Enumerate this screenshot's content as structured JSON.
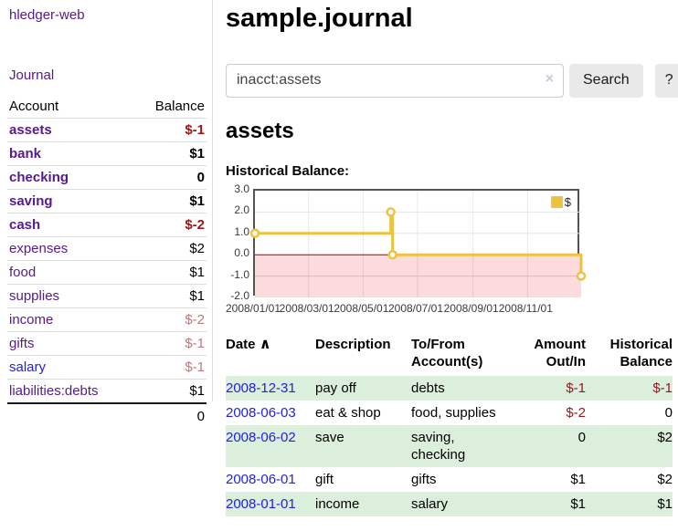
{
  "brand": "hledger-web",
  "sidebar": {
    "journal_link": "Journal",
    "account_header": "Account",
    "balance_header": "Balance",
    "accounts": [
      {
        "name": "assets",
        "balance": "$-1",
        "indent": 1,
        "bold": true,
        "balance_class": "neg-strong",
        "link_class": ""
      },
      {
        "name": "bank",
        "balance": "$1",
        "indent": 2,
        "bold": true,
        "balance_class": "",
        "link_class": ""
      },
      {
        "name": "checking",
        "balance": "0",
        "indent": 3,
        "bold": true,
        "balance_class": "",
        "link_class": ""
      },
      {
        "name": "saving",
        "balance": "$1",
        "indent": 3,
        "bold": true,
        "balance_class": "",
        "link_class": ""
      },
      {
        "name": "cash",
        "balance": "$-2",
        "indent": 2,
        "bold": true,
        "balance_class": "neg-strong",
        "link_class": ""
      },
      {
        "name": "expenses",
        "balance": "$2",
        "indent": 1,
        "bold": false,
        "balance_class": "",
        "link_class": ""
      },
      {
        "name": "food",
        "balance": "$1",
        "indent": 2,
        "bold": false,
        "balance_class": "",
        "link_class": ""
      },
      {
        "name": "supplies",
        "balance": "$1",
        "indent": 2,
        "bold": false,
        "balance_class": "",
        "link_class": ""
      },
      {
        "name": "income",
        "balance": "$-2",
        "indent": 1,
        "bold": false,
        "balance_class": "neg-soft",
        "link_class": ""
      },
      {
        "name": "gifts",
        "balance": "$-1",
        "indent": 2,
        "bold": false,
        "balance_class": "neg-soft",
        "link_class": ""
      },
      {
        "name": "salary",
        "balance": "$-1",
        "indent": 2,
        "bold": false,
        "balance_class": "neg-soft",
        "link_class": "blue"
      },
      {
        "name": "liabilities:debts",
        "balance": "$1",
        "indent": 1,
        "bold": false,
        "balance_class": "",
        "link_class": ""
      }
    ],
    "total": "0"
  },
  "main": {
    "title": "sample.journal",
    "search": {
      "value": "inacct:assets",
      "clear_icon": "×",
      "search_button": "Search",
      "help_button": "?"
    },
    "account_heading": "assets",
    "chart_title": "Historical Balance:"
  },
  "chart_data": {
    "type": "line",
    "step": true,
    "title": "Historical Balance",
    "series": [
      {
        "name": "$",
        "color": "#edc240",
        "points": [
          {
            "date": "2008-01-01",
            "value": 1
          },
          {
            "date": "2008-06-01",
            "value": 2
          },
          {
            "date": "2008-06-03",
            "value": 0
          },
          {
            "date": "2008-12-31",
            "value": -1
          }
        ]
      }
    ],
    "x_ticks": [
      "2008/01/01",
      "2008/03/01",
      "2008/05/01",
      "2008/07/01",
      "2008/09/01",
      "2008/11/01"
    ],
    "y_ticks": [
      3.0,
      2.0,
      1.0,
      0.0,
      -1.0,
      -2.0
    ],
    "xlim": [
      "2008-01-01",
      "2008-12-31"
    ],
    "ylim": [
      -2,
      3
    ],
    "legend": {
      "label": "$",
      "position": "top-right"
    },
    "grid": true,
    "zero_line_color": "#a80000",
    "negative_region_color": "#fbdbdb"
  },
  "transactions": {
    "headers": {
      "date": "Date",
      "sort_icon": "∧",
      "description": "Description",
      "accounts": "To/From Account(s)",
      "amount": "Amount Out/In",
      "balance": "Historical Balance"
    },
    "rows": [
      {
        "date": "2008-12-31",
        "description": "pay off",
        "accounts": "debts",
        "amount": "$-1",
        "balance": "$-1",
        "amount_negative": true,
        "balance_negative": true
      },
      {
        "date": "2008-06-03",
        "description": "eat & shop",
        "accounts": "food, supplies",
        "amount": "$-2",
        "balance": "0",
        "amount_negative": true,
        "balance_negative": false
      },
      {
        "date": "2008-06-02",
        "description": "save",
        "accounts": "saving, checking",
        "amount": "0",
        "balance": "$2",
        "amount_negative": false,
        "balance_negative": false
      },
      {
        "date": "2008-06-01",
        "description": "gift",
        "accounts": "gifts",
        "amount": "$1",
        "balance": "$2",
        "amount_negative": false,
        "balance_negative": false
      },
      {
        "date": "2008-01-01",
        "description": "income",
        "accounts": "salary",
        "amount": "$1",
        "balance": "$1",
        "amount_negative": false,
        "balance_negative": false
      }
    ]
  }
}
